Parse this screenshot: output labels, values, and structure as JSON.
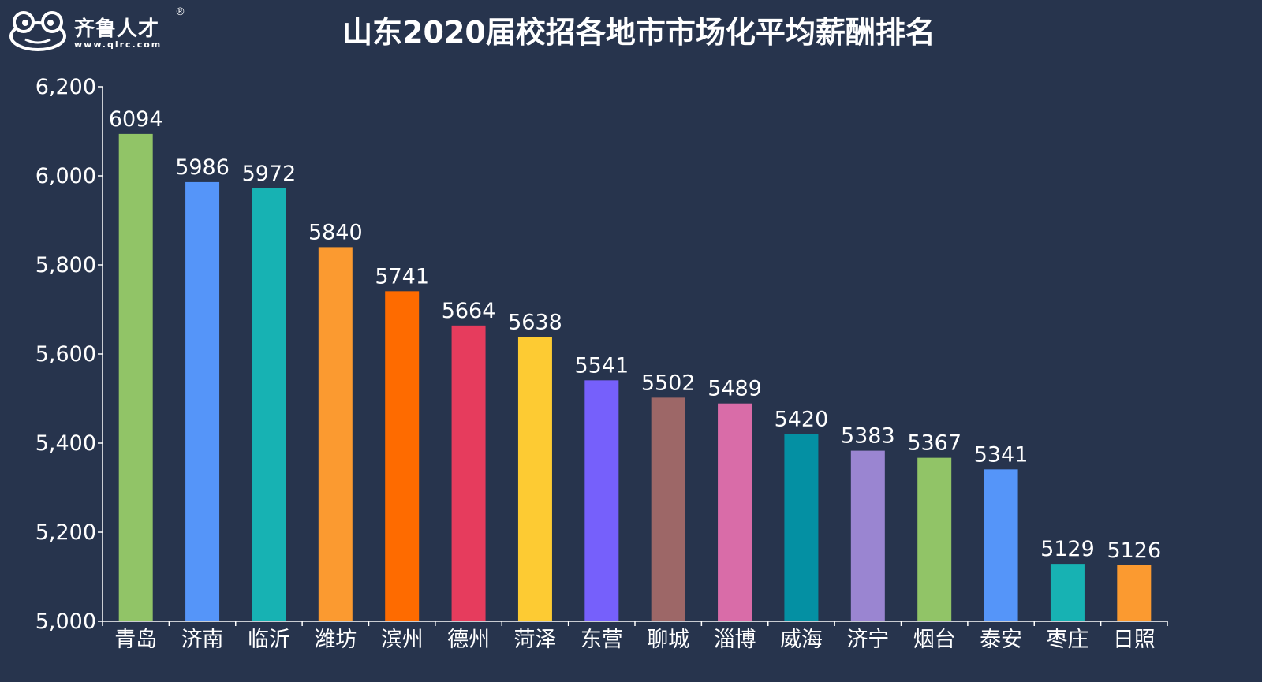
{
  "logo": {
    "name": "齐鲁人才",
    "registered": "®",
    "url": "www.qlrc.com",
    "icon": "frog-icon"
  },
  "chart_data": {
    "type": "bar",
    "title": "山东2020届校招各地市市场化平均薪酬排名",
    "xlabel": "",
    "ylabel": "",
    "ylim": [
      5000,
      6200
    ],
    "yticks": [
      5000,
      5200,
      5400,
      5600,
      5800,
      6000,
      6200
    ],
    "ytick_labels": [
      "5,000",
      "5,200",
      "5,400",
      "5,600",
      "5,800",
      "6,000",
      "6,200"
    ],
    "grid": false,
    "categories": [
      "青岛",
      "济南",
      "临沂",
      "潍坊",
      "滨州",
      "德州",
      "菏泽",
      "东营",
      "聊城",
      "淄博",
      "威海",
      "济宁",
      "烟台",
      "泰安",
      "枣庄",
      "日照"
    ],
    "values": [
      6094,
      5986,
      5972,
      5840,
      5741,
      5664,
      5638,
      5541,
      5502,
      5489,
      5420,
      5383,
      5367,
      5341,
      5129,
      5126
    ],
    "colors": [
      "#91c467",
      "#5595f9",
      "#17b2b3",
      "#fb9a30",
      "#fe6b00",
      "#e63c5d",
      "#fdcb33",
      "#7660fb",
      "#9d6767",
      "#d96ca8",
      "#0490a3",
      "#9a85d1",
      "#91c467",
      "#5595f9",
      "#17b2b3",
      "#fb9a30"
    ]
  }
}
